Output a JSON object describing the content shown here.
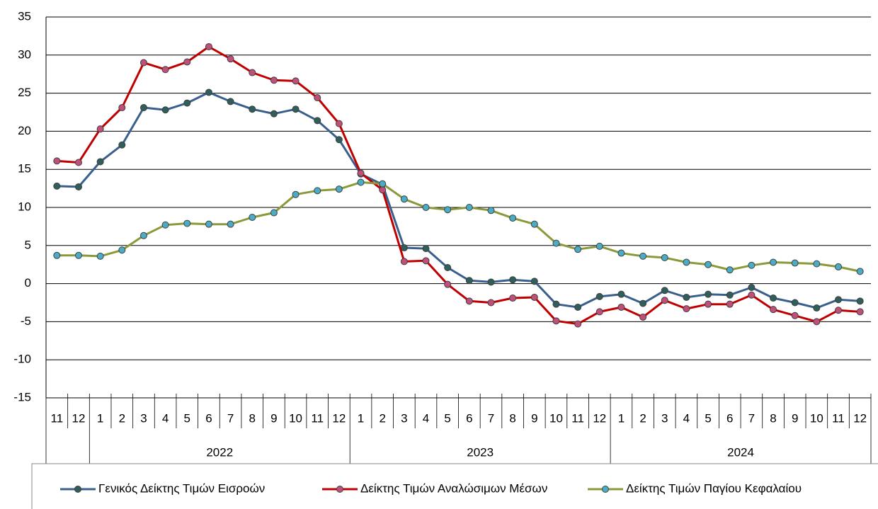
{
  "chart_data": {
    "type": "line",
    "categories": [
      "11",
      "12",
      "1",
      "2",
      "3",
      "4",
      "5",
      "6",
      "7",
      "8",
      "9",
      "10",
      "11",
      "12",
      "1",
      "2",
      "3",
      "4",
      "5",
      "6",
      "7",
      "8",
      "9",
      "10",
      "11",
      "12",
      "1",
      "2",
      "3",
      "4",
      "5",
      "6",
      "7",
      "8",
      "9",
      "10",
      "11",
      "12"
    ],
    "groups": [
      {
        "label": null,
        "count": 2
      },
      {
        "label": "2022",
        "count": 12
      },
      {
        "label": "2023",
        "count": 12
      },
      {
        "label": "2024",
        "count": 12
      }
    ],
    "series": [
      {
        "name": "Γενικός Δείκτης Τιμών Εισροών",
        "color": "#3a5f8c",
        "marker_color": "#2f5f5a",
        "values": [
          12.8,
          12.7,
          16.0,
          18.2,
          23.1,
          22.8,
          23.7,
          25.1,
          23.9,
          22.9,
          22.3,
          22.9,
          21.4,
          18.9,
          14.4,
          13.0,
          4.7,
          4.6,
          2.1,
          0.4,
          0.2,
          0.5,
          0.3,
          -2.7,
          -3.1,
          -1.7,
          -1.4,
          -2.6,
          -0.9,
          -1.8,
          -1.4,
          -1.5,
          -0.5,
          -1.9,
          -2.5,
          -3.2,
          -2.1,
          -2.3
        ]
      },
      {
        "name": "Δείκτης Τιμών Αναλώσιμων Μέσων",
        "color": "#c00000",
        "marker_color": "#c0507a",
        "values": [
          16.1,
          15.9,
          20.3,
          23.1,
          29.0,
          28.1,
          29.1,
          31.1,
          29.5,
          27.7,
          26.7,
          26.6,
          24.4,
          21.0,
          14.5,
          12.3,
          2.9,
          3.0,
          -0.1,
          -2.3,
          -2.5,
          -1.9,
          -1.8,
          -4.9,
          -5.3,
          -3.7,
          -3.1,
          -4.4,
          -2.2,
          -3.3,
          -2.7,
          -2.7,
          -1.5,
          -3.4,
          -4.2,
          -5.0,
          -3.5,
          -3.7
        ]
      },
      {
        "name": "Δείκτης Τιμών Παγίου Κεφαλαίου",
        "color": "#8a9a3b",
        "marker_color": "#4bacc6",
        "values": [
          3.7,
          3.7,
          3.6,
          4.4,
          6.3,
          7.7,
          7.9,
          7.8,
          7.8,
          8.7,
          9.3,
          11.7,
          12.2,
          12.4,
          13.3,
          13.1,
          11.1,
          10.0,
          9.7,
          10.0,
          9.6,
          8.6,
          7.8,
          5.3,
          4.5,
          4.9,
          4.0,
          3.6,
          3.4,
          2.8,
          2.5,
          1.8,
          2.4,
          2.8,
          2.7,
          2.6,
          2.2,
          1.6
        ]
      }
    ],
    "ylim": [
      -15,
      35
    ],
    "yticks": [
      -15,
      -10,
      -5,
      0,
      5,
      10,
      15,
      20,
      25,
      30,
      35
    ],
    "grid": true,
    "legend": "bottom"
  }
}
